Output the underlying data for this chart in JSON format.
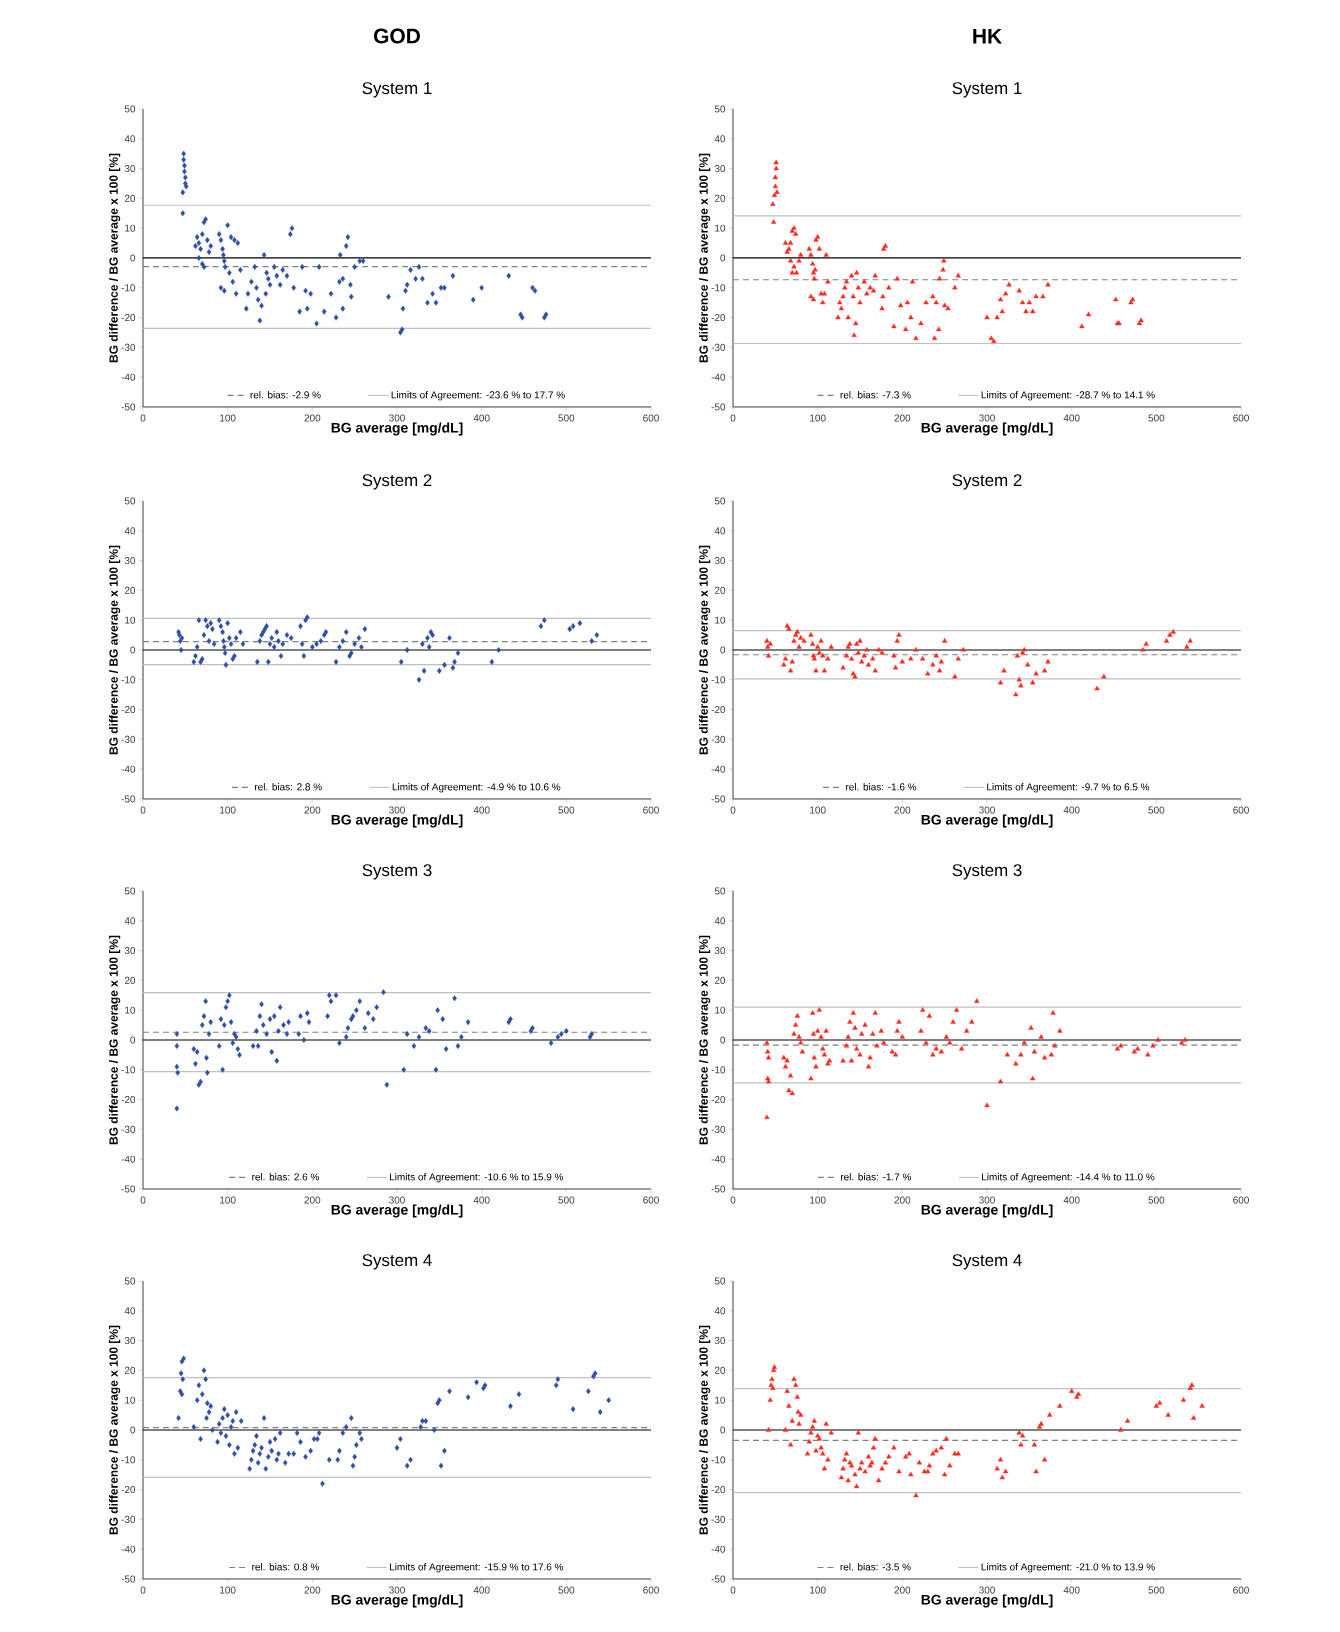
{
  "chart_data": [
    {
      "type": "scatter",
      "title": "System 1",
      "annotations": [
        "GOD"
      ],
      "xlabel": "BG average [mg/dL]",
      "ylabel": "BG difference / BG average x 100 [%]",
      "xlim": [
        0,
        600
      ],
      "ylim": [
        -50,
        50
      ],
      "xticks": [
        0,
        100,
        200,
        300,
        400,
        500,
        600
      ],
      "yticks": [
        -50,
        -40,
        -30,
        -20,
        -10,
        0,
        10,
        20,
        30,
        40,
        50
      ],
      "marker": "diamond",
      "legend": "bottom",
      "series": [
        {
          "color": "#2e4fa6",
          "x": [
            48,
            48,
            49,
            49,
            50,
            50,
            51,
            47,
            47,
            62,
            64,
            66,
            68,
            70,
            72,
            74,
            70,
            72,
            76,
            78,
            80,
            66,
            90,
            92,
            94,
            95,
            96,
            97,
            92,
            96,
            100,
            104,
            108,
            102,
            106,
            110,
            112,
            115,
            122,
            124,
            128,
            132,
            134,
            136,
            140,
            138,
            143,
            146,
            148,
            150,
            145,
            155,
            158,
            162,
            165,
            170,
            174,
            176,
            178,
            185,
            188,
            192,
            198,
            194,
            205,
            208,
            214,
            222,
            228,
            232,
            233,
            236,
            236,
            240,
            242,
            245,
            246,
            250,
            256,
            260,
            290,
            304,
            306,
            307,
            310,
            312,
            316,
            322,
            326,
            330,
            336,
            342,
            346,
            352,
            356,
            366,
            390,
            400,
            432,
            446,
            448,
            460,
            463,
            474,
            476
          ],
          "values": [
            35,
            33,
            31,
            29,
            27,
            25,
            24,
            22,
            15,
            4,
            7,
            5,
            3,
            8,
            12,
            13,
            -2,
            -3,
            6,
            2,
            4,
            0,
            8,
            6,
            3,
            1,
            -1,
            -3,
            -10,
            -11,
            11,
            7,
            6,
            -5,
            -8,
            -12,
            5,
            -4,
            -17,
            -12,
            -8,
            -3,
            -10,
            -14,
            -16,
            -21,
            1,
            -5,
            -7,
            -9,
            -12,
            -3,
            -6,
            -9,
            -4,
            -6,
            8,
            10,
            -10,
            -18,
            -3,
            -11,
            -12,
            -17,
            -22,
            -3,
            -18,
            -12,
            -20,
            -8,
            1,
            -7,
            -17,
            4,
            7,
            -9,
            -13,
            -3,
            -1,
            -1,
            -13,
            -25,
            -24,
            -17,
            -11,
            -9,
            -4,
            -7,
            -3,
            -7,
            -15,
            -12,
            -15,
            -10,
            -10,
            -6,
            -14,
            -10,
            -6,
            -19,
            -20,
            -10,
            -11,
            -20,
            -19
          ]
        }
      ],
      "ref_lines": [
        {
          "axis": "y",
          "value": 0,
          "color": "#000000",
          "line_style": "solid"
        },
        {
          "axis": "y",
          "value": -2.9,
          "label": "rel. bias: -2.9 %",
          "color": "#808080",
          "line_style": "dashed"
        },
        {
          "axis": "y",
          "value": -23.6,
          "label": "Limits of Agreement: -23.6 % to 17.7 %",
          "color": "#c0c0c0",
          "line_style": "solid"
        },
        {
          "axis": "y",
          "value": 17.7,
          "color": "#c0c0c0",
          "line_style": "solid"
        }
      ]
    },
    {
      "type": "scatter",
      "title": "System 1",
      "annotations": [
        "HK"
      ],
      "xlabel": "BG average [mg/dL]",
      "ylabel": "BG difference / BG average x 100 [%]",
      "xlim": [
        0,
        600
      ],
      "ylim": [
        -50,
        50
      ],
      "xticks": [
        0,
        100,
        200,
        300,
        400,
        500,
        600
      ],
      "yticks": [
        -50,
        -40,
        -30,
        -20,
        -10,
        0,
        10,
        20,
        30,
        40,
        50
      ],
      "marker": "triangle",
      "legend": "bottom",
      "series": [
        {
          "color": "#ff2a1f",
          "x": [
            47,
            48,
            49,
            50,
            50,
            51,
            51,
            52,
            62,
            64,
            66,
            68,
            70,
            72,
            74,
            70,
            72,
            75,
            78,
            80,
            68,
            90,
            92,
            94,
            95,
            96,
            97,
            92,
            95,
            98,
            100,
            102,
            104,
            106,
            108,
            110,
            112,
            124,
            126,
            128,
            130,
            132,
            134,
            136,
            140,
            142,
            143,
            145,
            146,
            148,
            150,
            155,
            158,
            162,
            166,
            168,
            176,
            177,
            178,
            180,
            184,
            190,
            194,
            198,
            204,
            206,
            210,
            212,
            216,
            222,
            228,
            236,
            238,
            240,
            243,
            244,
            248,
            249,
            250,
            254,
            262,
            266,
            300,
            305,
            308,
            312,
            316,
            318,
            322,
            326,
            338,
            342,
            346,
            350,
            354,
            358,
            366,
            372,
            412,
            420,
            452,
            454,
            456,
            470,
            472,
            480,
            482
          ],
          "values": [
            18,
            12,
            21,
            24,
            27,
            30,
            32,
            22,
            5,
            2,
            3,
            5,
            9,
            10,
            8,
            -5,
            -3,
            -5,
            -1,
            1,
            -1,
            3,
            1,
            -2,
            -5,
            -7,
            -4,
            -13,
            -14,
            6,
            7,
            3,
            -12,
            -15,
            -12,
            1,
            -8,
            -20,
            -15,
            -17,
            -13,
            -10,
            -8,
            -20,
            -6,
            -13,
            -26,
            -22,
            -5,
            -10,
            -15,
            -8,
            -12,
            -10,
            -11,
            -6,
            -17,
            -13,
            3,
            4,
            -10,
            -23,
            -7,
            -16,
            -24,
            -15,
            -20,
            -8,
            -27,
            -22,
            -15,
            -13,
            -27,
            -15,
            -24,
            -7,
            -4,
            -1,
            -16,
            -17,
            -10,
            -6,
            -20,
            -27,
            -28,
            -20,
            -14,
            -18,
            -12,
            -9,
            -11,
            -15,
            -18,
            -15,
            -18,
            -13,
            -13,
            -9,
            -23,
            -19,
            -14,
            -22,
            -22,
            -15,
            -14,
            -22,
            -21
          ]
        }
      ],
      "ref_lines": [
        {
          "axis": "y",
          "value": 0,
          "color": "#000000",
          "line_style": "solid"
        },
        {
          "axis": "y",
          "value": -7.3,
          "label": "rel. bias: -7.3 %",
          "color": "#808080",
          "line_style": "dashed"
        },
        {
          "axis": "y",
          "value": -28.7,
          "label": "Limits of Agreement: -28.7 % to 14.1 %",
          "color": "#c0c0c0",
          "line_style": "solid"
        },
        {
          "axis": "y",
          "value": 14.1,
          "color": "#c0c0c0",
          "line_style": "solid"
        }
      ]
    },
    {
      "type": "scatter",
      "title": "System 2",
      "xlabel": "BG average [mg/dL]",
      "ylabel": "BG difference / BG average x 100 [%]",
      "xlim": [
        0,
        600
      ],
      "ylim": [
        -50,
        50
      ],
      "xticks": [
        0,
        100,
        200,
        300,
        400,
        500,
        600
      ],
      "yticks": [
        -50,
        -40,
        -30,
        -20,
        -10,
        0,
        10,
        20,
        30,
        40,
        50
      ],
      "marker": "diamond",
      "legend": "bottom",
      "series": [
        {
          "color": "#2e4fa6",
          "x": [
            42,
            43,
            44,
            45,
            46,
            60,
            62,
            64,
            66,
            68,
            70,
            72,
            74,
            76,
            78,
            80,
            82,
            84,
            90,
            92,
            94,
            95,
            96,
            97,
            98,
            100,
            102,
            104,
            106,
            108,
            110,
            115,
            118,
            135,
            138,
            140,
            142,
            144,
            146,
            148,
            150,
            152,
            155,
            158,
            160,
            163,
            165,
            170,
            175,
            186,
            188,
            190,
            192,
            194,
            200,
            205,
            210,
            214,
            216,
            228,
            232,
            236,
            240,
            244,
            246,
            250,
            255,
            258,
            262,
            305,
            312,
            326,
            330,
            332,
            336,
            338,
            340,
            342,
            350,
            356,
            362,
            366,
            368,
            372,
            412,
            420,
            470,
            474,
            504,
            508,
            516,
            530,
            536
          ],
          "values": [
            6,
            5,
            3,
            0,
            4,
            -4,
            -2,
            1,
            10,
            -4,
            -3,
            5,
            10,
            8,
            3,
            9,
            7,
            2,
            10,
            8,
            6,
            3,
            1,
            -1,
            -5,
            9,
            4,
            2,
            -3,
            -2,
            4,
            6,
            2,
            -4,
            3,
            5,
            6,
            7,
            8,
            -4,
            2,
            4,
            1,
            6,
            3,
            -2,
            2,
            5,
            4,
            8,
            2,
            -2,
            10,
            11,
            1,
            2,
            3,
            5,
            6,
            -4,
            1,
            3,
            6,
            -2,
            -1,
            2,
            4,
            1,
            7,
            -4,
            0,
            -10,
            2,
            -7,
            4,
            1,
            6,
            5,
            -7,
            -5,
            4,
            -6,
            -4,
            -1,
            -4,
            0,
            8,
            10,
            7,
            8,
            9,
            3,
            5
          ]
        }
      ],
      "ref_lines": [
        {
          "axis": "y",
          "value": 0,
          "color": "#000000",
          "line_style": "solid"
        },
        {
          "axis": "y",
          "value": 2.8,
          "label": "rel. bias: 2.8 %",
          "color": "#808080",
          "line_style": "dashed"
        },
        {
          "axis": "y",
          "value": -4.9,
          "label": "Limits of Agreement: -4.9 % to 10.6 %",
          "color": "#c0c0c0",
          "line_style": "solid"
        },
        {
          "axis": "y",
          "value": 10.6,
          "color": "#c0c0c0",
          "line_style": "solid"
        }
      ]
    },
    {
      "type": "scatter",
      "title": "System 2",
      "xlabel": "BG average [mg/dL]",
      "ylabel": "BG difference / BG average x 100 [%]",
      "xlim": [
        0,
        600
      ],
      "ylim": [
        -50,
        50
      ],
      "xticks": [
        0,
        100,
        200,
        300,
        400,
        500,
        600
      ],
      "yticks": [
        -50,
        -40,
        -30,
        -20,
        -10,
        0,
        10,
        20,
        30,
        40,
        50
      ],
      "marker": "triangle",
      "legend": "bottom",
      "series": [
        {
          "color": "#ff2a1f",
          "x": [
            40,
            41,
            42,
            44,
            60,
            62,
            64,
            66,
            68,
            70,
            72,
            74,
            76,
            78,
            80,
            84,
            92,
            94,
            95,
            96,
            98,
            100,
            102,
            104,
            106,
            108,
            112,
            116,
            130,
            134,
            136,
            138,
            140,
            142,
            144,
            146,
            148,
            150,
            152,
            155,
            158,
            160,
            165,
            168,
            172,
            176,
            190,
            192,
            194,
            196,
            200,
            210,
            216,
            224,
            230,
            236,
            240,
            244,
            246,
            250,
            262,
            266,
            272,
            316,
            320,
            334,
            336,
            338,
            340,
            342,
            344,
            348,
            354,
            358,
            368,
            372,
            430,
            438,
            484,
            488,
            512,
            516,
            520,
            536,
            540
          ],
          "values": [
            3,
            1,
            -2,
            2,
            -5,
            -3,
            8,
            7,
            -7,
            -4,
            3,
            5,
            6,
            1,
            4,
            3,
            5,
            2,
            -2,
            -3,
            -7,
            1,
            -1,
            3,
            -2,
            -7,
            -3,
            1,
            -6,
            -2,
            1,
            2,
            -3,
            -8,
            -9,
            2,
            -1,
            3,
            -4,
            -2,
            0,
            -5,
            -3,
            -7,
            0,
            -1,
            -2,
            -6,
            3,
            5,
            -4,
            -3,
            0,
            -3,
            -8,
            -5,
            -2,
            -7,
            -4,
            3,
            -9,
            -3,
            0,
            -11,
            -7,
            -15,
            -2,
            -10,
            -12,
            -1,
            0,
            -5,
            -11,
            -8,
            -7,
            -4,
            -13,
            -9,
            0,
            2,
            3,
            5,
            6,
            1,
            3
          ]
        }
      ],
      "ref_lines": [
        {
          "axis": "y",
          "value": 0,
          "color": "#000000",
          "line_style": "solid"
        },
        {
          "axis": "y",
          "value": -1.6,
          "label": "rel. bias: -1.6 %",
          "color": "#808080",
          "line_style": "dashed"
        },
        {
          "axis": "y",
          "value": -9.7,
          "label": "Limits of Agreement: -9.7 % to 6.5 %",
          "color": "#c0c0c0",
          "line_style": "solid"
        },
        {
          "axis": "y",
          "value": 6.5,
          "color": "#c0c0c0",
          "line_style": "solid"
        }
      ]
    },
    {
      "type": "scatter",
      "title": "System 3",
      "xlabel": "BG average [mg/dL]",
      "ylabel": "BG difference / BG average x 100 [%]",
      "xlim": [
        0,
        600
      ],
      "ylim": [
        -50,
        50
      ],
      "xticks": [
        0,
        100,
        200,
        300,
        400,
        500,
        600
      ],
      "yticks": [
        -50,
        -40,
        -30,
        -20,
        -10,
        0,
        10,
        20,
        30,
        40,
        50
      ],
      "marker": "diamond",
      "legend": "bottom",
      "series": [
        {
          "color": "#2e4fa6",
          "x": [
            40,
            40,
            40,
            41,
            40,
            60,
            62,
            64,
            66,
            68,
            70,
            72,
            74,
            75,
            76,
            78,
            80,
            90,
            92,
            94,
            96,
            98,
            100,
            102,
            104,
            106,
            108,
            110,
            112,
            114,
            130,
            134,
            136,
            138,
            140,
            142,
            146,
            150,
            152,
            155,
            158,
            160,
            162,
            166,
            170,
            172,
            184,
            186,
            190,
            194,
            196,
            218,
            220,
            222,
            228,
            232,
            240,
            242,
            246,
            248,
            252,
            256,
            262,
            266,
            272,
            276,
            284,
            288,
            308,
            312,
            320,
            326,
            334,
            338,
            346,
            348,
            354,
            358,
            368,
            372,
            376,
            384,
            432,
            434,
            458,
            460,
            482,
            490,
            494,
            500,
            528,
            530
          ],
          "values": [
            2,
            -2,
            -9,
            -11,
            -23,
            -3,
            -8,
            -4,
            -15,
            -14,
            5,
            8,
            13,
            -6,
            -11,
            2,
            6,
            -2,
            7,
            -10,
            5,
            11,
            13,
            15,
            6,
            -1,
            2,
            1,
            -3,
            -5,
            -2,
            3,
            -2,
            8,
            12,
            5,
            2,
            7,
            -4,
            8,
            -7,
            3,
            11,
            5,
            2,
            6,
            2,
            8,
            0,
            9,
            6,
            8,
            15,
            13,
            15,
            -1,
            1,
            4,
            7,
            8,
            10,
            13,
            4,
            9,
            7,
            11,
            16,
            -15,
            -10,
            2,
            -2,
            1,
            4,
            3,
            -10,
            10,
            7,
            -3,
            14,
            -2,
            1,
            6,
            6,
            7,
            3,
            4,
            -1,
            1,
            2,
            3,
            1,
            2
          ]
        }
      ],
      "ref_lines": [
        {
          "axis": "y",
          "value": 0,
          "color": "#000000",
          "line_style": "solid"
        },
        {
          "axis": "y",
          "value": 2.6,
          "label": "rel. bias: 2.6 %",
          "color": "#808080",
          "line_style": "dashed"
        },
        {
          "axis": "y",
          "value": -10.6,
          "label": "Limits of Agreement: -10.6 % to 15.9 %",
          "color": "#c0c0c0",
          "line_style": "solid"
        },
        {
          "axis": "y",
          "value": 15.9,
          "color": "#c0c0c0",
          "line_style": "solid"
        }
      ]
    },
    {
      "type": "scatter",
      "title": "System 3",
      "xlabel": "BG average [mg/dL]",
      "ylabel": "BG difference / BG average x 100 [%]",
      "xlim": [
        0,
        600
      ],
      "ylim": [
        -50,
        50
      ],
      "xticks": [
        0,
        100,
        200,
        300,
        400,
        500,
        600
      ],
      "yticks": [
        -50,
        -40,
        -30,
        -20,
        -10,
        0,
        10,
        20,
        30,
        40,
        50
      ],
      "marker": "triangle",
      "legend": "bottom",
      "series": [
        {
          "color": "#ff2a1f",
          "x": [
            40,
            41,
            42,
            41,
            42,
            40,
            60,
            62,
            64,
            66,
            68,
            70,
            72,
            74,
            76,
            78,
            80,
            82,
            92,
            94,
            95,
            96,
            98,
            100,
            102,
            104,
            106,
            108,
            110,
            112,
            114,
            130,
            134,
            136,
            138,
            140,
            142,
            144,
            146,
            150,
            152,
            156,
            160,
            162,
            165,
            168,
            170,
            175,
            178,
            188,
            192,
            194,
            196,
            200,
            222,
            224,
            228,
            232,
            236,
            240,
            246,
            252,
            256,
            260,
            264,
            270,
            276,
            282,
            288,
            300,
            316,
            324,
            334,
            340,
            344,
            352,
            354,
            356,
            364,
            368,
            376,
            378,
            380,
            386,
            454,
            458,
            474,
            478,
            490,
            496,
            502,
            530,
            534
          ],
          "values": [
            -1,
            -4,
            -6,
            -13,
            -14,
            -26,
            -6,
            -9,
            -7,
            -17,
            -12,
            -18,
            2,
            5,
            8,
            1,
            -1,
            -4,
            -13,
            9,
            2,
            -6,
            -9,
            3,
            10,
            1,
            -3,
            -5,
            3,
            -8,
            -7,
            -7,
            -2,
            1,
            6,
            -7,
            9,
            4,
            -3,
            -5,
            2,
            5,
            -9,
            -6,
            2,
            9,
            -2,
            3,
            -1,
            -4,
            -5,
            3,
            6,
            1,
            3,
            10,
            -1,
            8,
            -5,
            -3,
            -4,
            1,
            -1,
            6,
            10,
            -3,
            3,
            6,
            13,
            -22,
            -14,
            -5,
            -8,
            -5,
            -1,
            4,
            -13,
            -4,
            1,
            -6,
            -5,
            9,
            -2,
            3,
            -3,
            -2,
            -4,
            -3,
            -5,
            -2,
            0,
            -1,
            0
          ]
        }
      ],
      "ref_lines": [
        {
          "axis": "y",
          "value": 0,
          "color": "#000000",
          "line_style": "solid"
        },
        {
          "axis": "y",
          "value": -1.7,
          "label": "rel. bias: -1.7 %",
          "color": "#808080",
          "line_style": "dashed"
        },
        {
          "axis": "y",
          "value": -14.4,
          "label": "Limits of Agreement: -14.4 % to 11.0 %",
          "color": "#c0c0c0",
          "line_style": "solid"
        },
        {
          "axis": "y",
          "value": 11.0,
          "color": "#c0c0c0",
          "line_style": "solid"
        }
      ]
    },
    {
      "type": "scatter",
      "title": "System 4",
      "xlabel": "BG average [mg/dL]",
      "ylabel": "BG difference / BG average x 100 [%]",
      "xlim": [
        0,
        600
      ],
      "ylim": [
        -50,
        50
      ],
      "xticks": [
        0,
        100,
        200,
        300,
        400,
        500,
        600
      ],
      "yticks": [
        -50,
        -40,
        -30,
        -20,
        -10,
        0,
        10,
        20,
        30,
        40,
        50
      ],
      "marker": "diamond",
      "legend": "bottom",
      "series": [
        {
          "color": "#2e4fa6",
          "x": [
            42,
            44,
            45,
            46,
            48,
            47,
            46,
            60,
            64,
            66,
            68,
            70,
            72,
            74,
            75,
            76,
            78,
            80,
            82,
            88,
            90,
            92,
            94,
            96,
            98,
            100,
            102,
            104,
            106,
            108,
            110,
            112,
            116,
            126,
            128,
            130,
            132,
            134,
            136,
            138,
            140,
            143,
            145,
            148,
            150,
            152,
            156,
            158,
            160,
            162,
            168,
            172,
            178,
            182,
            186,
            192,
            198,
            202,
            206,
            208,
            212,
            220,
            230,
            232,
            236,
            240,
            246,
            248,
            250,
            252,
            256,
            258,
            300,
            304,
            312,
            316,
            328,
            330,
            334,
            344,
            348,
            350,
            356,
            352,
            362,
            384,
            394,
            402,
            404,
            434,
            444,
            488,
            490,
            508,
            526,
            532,
            534,
            540,
            550
          ],
          "values": [
            4,
            13,
            19,
            23,
            24,
            17,
            12,
            1,
            10,
            15,
            -3,
            12,
            20,
            17,
            4,
            9,
            6,
            8,
            0,
            -4,
            2,
            -1,
            4,
            7,
            -2,
            5,
            -5,
            1,
            3,
            -8,
            6,
            -6,
            3,
            -13,
            -10,
            -7,
            -5,
            -2,
            -11,
            -8,
            -6,
            4,
            -13,
            -9,
            -4,
            -7,
            -3,
            -10,
            -8,
            -1,
            -11,
            -8,
            -8,
            -1,
            -4,
            -9,
            -7,
            -3,
            -3,
            -1,
            -18,
            -10,
            -10,
            -7,
            -1,
            1,
            4,
            -12,
            -9,
            -5,
            -1,
            -3,
            -6,
            -3,
            -12,
            -10,
            1,
            3,
            3,
            0,
            9,
            10,
            -7,
            -12,
            13,
            11,
            16,
            14,
            15,
            8,
            12,
            15,
            17,
            7,
            13,
            18,
            19,
            6,
            10
          ]
        }
      ],
      "ref_lines": [
        {
          "axis": "y",
          "value": 0,
          "color": "#000000",
          "line_style": "solid"
        },
        {
          "axis": "y",
          "value": 0.8,
          "label": "rel. bias: 0.8 %",
          "color": "#808080",
          "line_style": "dashed"
        },
        {
          "axis": "y",
          "value": -15.9,
          "label": "Limits of Agreement: -15.9 % to 17.6 %",
          "color": "#c0c0c0",
          "line_style": "solid"
        },
        {
          "axis": "y",
          "value": 17.6,
          "color": "#c0c0c0",
          "line_style": "solid"
        }
      ]
    },
    {
      "type": "scatter",
      "title": "System 4",
      "xlabel": "BG average [mg/dL]",
      "ylabel": "BG difference / BG average x 100 [%]",
      "xlim": [
        0,
        600
      ],
      "ylim": [
        -50,
        50
      ],
      "xticks": [
        0,
        100,
        200,
        300,
        400,
        500,
        600
      ],
      "yticks": [
        -50,
        -40,
        -30,
        -20,
        -10,
        0,
        10,
        20,
        30,
        40,
        50
      ],
      "marker": "triangle",
      "legend": "bottom",
      "series": [
        {
          "color": "#ff2a1f",
          "x": [
            42,
            44,
            45,
            46,
            48,
            49,
            47,
            62,
            64,
            66,
            68,
            70,
            72,
            74,
            76,
            77,
            78,
            80,
            88,
            90,
            92,
            94,
            96,
            98,
            100,
            102,
            104,
            106,
            108,
            110,
            112,
            116,
            128,
            130,
            132,
            134,
            136,
            138,
            140,
            144,
            146,
            148,
            150,
            152,
            156,
            160,
            162,
            164,
            166,
            168,
            172,
            176,
            180,
            184,
            190,
            196,
            204,
            208,
            210,
            216,
            220,
            226,
            230,
            232,
            236,
            240,
            246,
            250,
            252,
            256,
            262,
            266,
            312,
            316,
            318,
            322,
            338,
            340,
            342,
            356,
            358,
            362,
            364,
            368,
            374,
            386,
            400,
            406,
            408,
            458,
            466,
            500,
            504,
            514,
            532,
            540,
            542,
            544,
            554
          ],
          "values": [
            0,
            10,
            15,
            17,
            20,
            21,
            14,
            0,
            13,
            8,
            -5,
            3,
            17,
            15,
            11,
            6,
            2,
            5,
            -8,
            -4,
            -1,
            1,
            3,
            -7,
            -2,
            -3,
            -6,
            -8,
            -13,
            2,
            -10,
            -1,
            -16,
            -13,
            -10,
            -8,
            -17,
            -11,
            -12,
            -15,
            -19,
            -1,
            -13,
            -11,
            -14,
            -9,
            -12,
            -11,
            -6,
            -3,
            -17,
            -13,
            -11,
            -9,
            -6,
            -14,
            -9,
            -8,
            -15,
            -22,
            -11,
            -14,
            -14,
            -12,
            -8,
            -7,
            -6,
            -15,
            -3,
            -12,
            -8,
            -8,
            -13,
            -10,
            -16,
            -14,
            -1,
            -5,
            -2,
            -5,
            -14,
            1,
            2,
            -10,
            5,
            8,
            13,
            11,
            12,
            0,
            3,
            8,
            9,
            5,
            10,
            14,
            15,
            4,
            8
          ]
        }
      ],
      "ref_lines": [
        {
          "axis": "y",
          "value": 0,
          "color": "#000000",
          "line_style": "solid"
        },
        {
          "axis": "y",
          "value": -3.5,
          "label": "rel. bias: -3.5 %",
          "color": "#808080",
          "line_style": "dashed"
        },
        {
          "axis": "y",
          "value": -21.0,
          "label": "Limits of Agreement: -21.0 % to 13.9 %",
          "color": "#c0c0c0",
          "line_style": "solid"
        },
        {
          "axis": "y",
          "value": 13.9,
          "color": "#c0c0c0",
          "line_style": "solid"
        }
      ]
    }
  ]
}
